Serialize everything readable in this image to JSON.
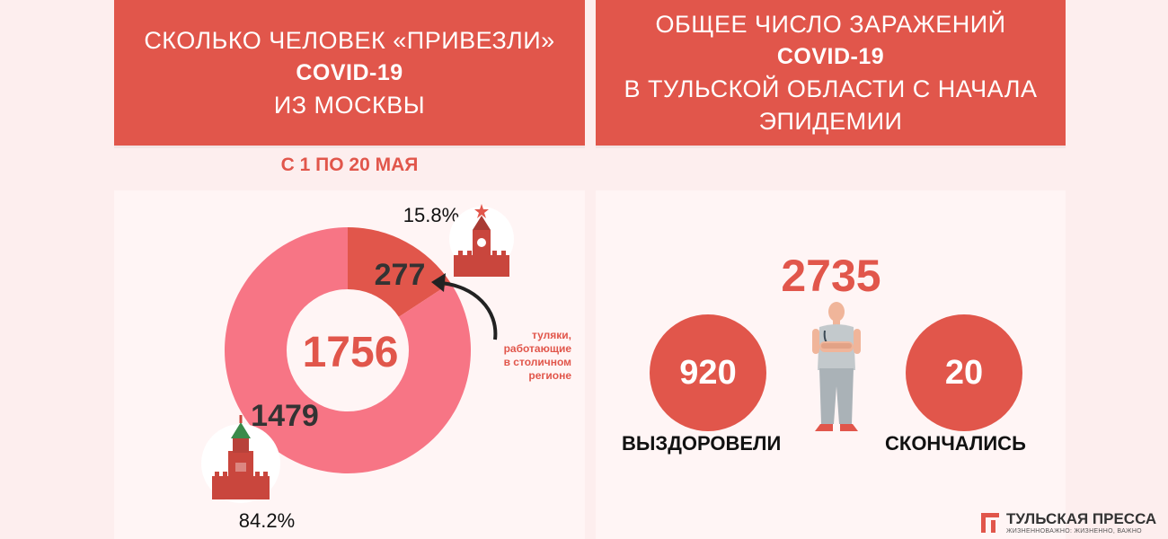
{
  "left_banner": {
    "line1": "СКОЛЬКО ЧЕЛОВЕК  «ПРИВЕЗЛИ»",
    "line2": "COVID-19",
    "line3": "ИЗ МОСКВЫ"
  },
  "period": "С 1 ПО 20 МАЯ",
  "right_banner": {
    "line1": "ОБЩЕЕ ЧИСЛО ЗАРАЖЕНИЙ",
    "line2": "COVID-19",
    "line3": "В ТУЛЬСКОЙ ОБЛАСТИ С НАЧАЛА",
    "line4": "ЭПИДЕМИИ"
  },
  "chart_data": {
    "type": "pie",
    "title": "",
    "total": "1756",
    "slices": [
      {
        "label": "277",
        "value": 277,
        "percent": "15.8%",
        "color": "#e1564b"
      },
      {
        "label": "1479",
        "value": 1479,
        "percent": "84.2%",
        "color": "#f77585"
      }
    ],
    "annotation": {
      "line1": "туляки,",
      "line2": "работающие",
      "line3": "в столичном",
      "line4": "регионе"
    }
  },
  "stats": {
    "total_cases": "2735",
    "recovered": {
      "value": "920",
      "label": "ВЫЗДОРОВЕЛИ"
    },
    "deaths": {
      "value": "20",
      "label": "СКОНЧАЛИСЬ"
    }
  },
  "icons": {
    "kremlin_top": "kremlin-spasskaya-tower-icon",
    "kremlin_bottom": "kremlin-tower-icon",
    "doctor": "doctor-illustration",
    "brand": "brand-logo-icon"
  },
  "brand": {
    "name": "ТУЛЬСКАЯ ПРЕССА",
    "tagline": "ЖИЗНЕННОВАЖНО: ЖИЗНЕННО, ВАЖНО"
  },
  "colors": {
    "accent": "#e1564b",
    "pink": "#f77585",
    "background": "#fdeeee",
    "panel": "#fff5f5"
  }
}
